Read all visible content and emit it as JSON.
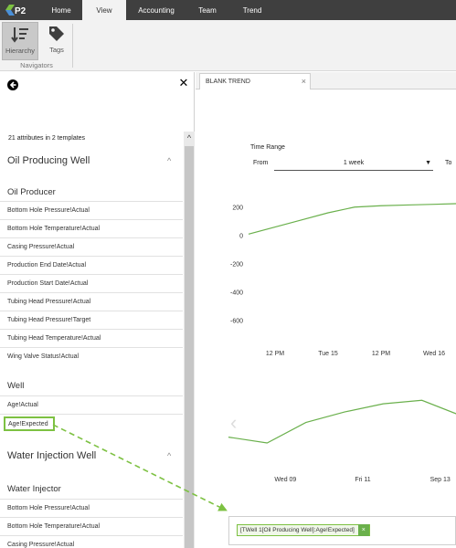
{
  "menubar": {
    "logo_text": "P2",
    "tabs": [
      {
        "label": "Home"
      },
      {
        "label": "View"
      },
      {
        "label": "Accounting"
      },
      {
        "label": "Team"
      },
      {
        "label": "Trend"
      }
    ],
    "active_tab": "View"
  },
  "ribbon": {
    "buttons": [
      {
        "label": "Hierarchy",
        "icon": "hierarchy-sort-icon",
        "selected": true
      },
      {
        "label": "Tags",
        "icon": "tag-icon",
        "selected": false
      }
    ],
    "group_label": "Navigators"
  },
  "left_panel": {
    "back_icon": "back-arrow-icon",
    "close_icon": "close-icon",
    "attr_count": "21 attributes in 2 templates",
    "sections": [
      {
        "title": "Oil Producing Well",
        "subgroups": [
          {
            "title": "Oil Producer",
            "items": [
              "Bottom Hole Pressure!Actual",
              "Bottom Hole Temperature!Actual",
              "Casing Pressure!Actual",
              "Production End Date!Actual",
              "Production Start Date!Actual",
              "Tubing Head Pressure!Actual",
              "Tubing Head Pressure!Target",
              "Tubing Head Temperature!Actual",
              "Wing Valve Status!Actual"
            ]
          },
          {
            "title": "Well",
            "items": [
              "Age!Actual",
              "Age!Expected"
            ]
          }
        ]
      },
      {
        "title": "Water Injection Well",
        "subgroups": [
          {
            "title": "Water Injector",
            "items": [
              "Bottom Hole Pressure!Actual",
              "Bottom Hole Temperature!Actual",
              "Casing Pressure!Actual"
            ]
          }
        ]
      }
    ]
  },
  "trend": {
    "tab_label": "BLANK TREND",
    "time_range_label": "Time Range",
    "from_label": "From",
    "to_label": "To",
    "range_value": "1 week",
    "chip_text": "[TWell 1[Oil Producing Well]:Age!Expected]",
    "chip_close": "×",
    "accent_color": "#7dc142",
    "line_color": "#6ab04c"
  },
  "chart_data": [
    {
      "type": "line",
      "title": "",
      "xlabel": "",
      "ylabel": "",
      "x": [
        "",
        "12 PM",
        "",
        "Tue 15",
        "",
        "12 PM",
        "",
        "Wed 16",
        ""
      ],
      "series": [
        {
          "values": [
            10,
            60,
            110,
            160,
            200,
            210,
            215,
            220,
            225
          ]
        }
      ],
      "x_tick_labels": [
        "12 PM",
        "Tue 15",
        "12 PM",
        "Wed 16"
      ],
      "y_tick_labels": [
        "200",
        "0",
        "-200",
        "-400",
        "-600"
      ],
      "ylim": [
        -650,
        250
      ],
      "grid": false
    },
    {
      "type": "line",
      "title": "",
      "xlabel": "",
      "ylabel": "",
      "x": [
        "",
        "Wed 09",
        "",
        "Fri 11",
        "",
        "Sep 13",
        ""
      ],
      "series": [
        {
          "values": [
            0.35,
            0.25,
            0.6,
            0.78,
            0.92,
            0.98,
            0.72
          ]
        }
      ],
      "x_tick_labels": [
        "Wed 09",
        "Fri 11",
        "Sep 13"
      ],
      "grid": false
    }
  ]
}
